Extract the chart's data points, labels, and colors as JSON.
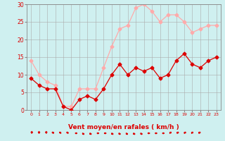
{
  "x": [
    0,
    1,
    2,
    3,
    4,
    5,
    6,
    7,
    8,
    9,
    10,
    11,
    12,
    13,
    14,
    15,
    16,
    17,
    18,
    19,
    20,
    21,
    22,
    23
  ],
  "wind_avg": [
    9,
    7,
    6,
    6,
    1,
    0,
    3,
    4,
    3,
    6,
    10,
    13,
    10,
    12,
    11,
    12,
    9,
    10,
    14,
    16,
    13,
    12,
    14,
    15
  ],
  "wind_gust": [
    14,
    10,
    8,
    7,
    1,
    1,
    6,
    6,
    6,
    12,
    18,
    23,
    24,
    29,
    30,
    28,
    25,
    27,
    27,
    25,
    22,
    23,
    24,
    24
  ],
  "wind_dir_deg": [
    180,
    180,
    180,
    225,
    225,
    225,
    90,
    45,
    45,
    90,
    90,
    45,
    45,
    45,
    45,
    45,
    90,
    90,
    90,
    135,
    135,
    135,
    135,
    135
  ],
  "avg_color": "#dd0000",
  "gust_color": "#ffaaaa",
  "bg_color": "#cff0f0",
  "grid_color": "#aaaaaa",
  "xlabel": "Vent moyen/en rafales ( km/h )",
  "xlabel_color": "#dd0000",
  "tick_color": "#dd0000",
  "ylim": [
    0,
    30
  ],
  "yticks": [
    0,
    5,
    10,
    15,
    20,
    25,
    30
  ]
}
